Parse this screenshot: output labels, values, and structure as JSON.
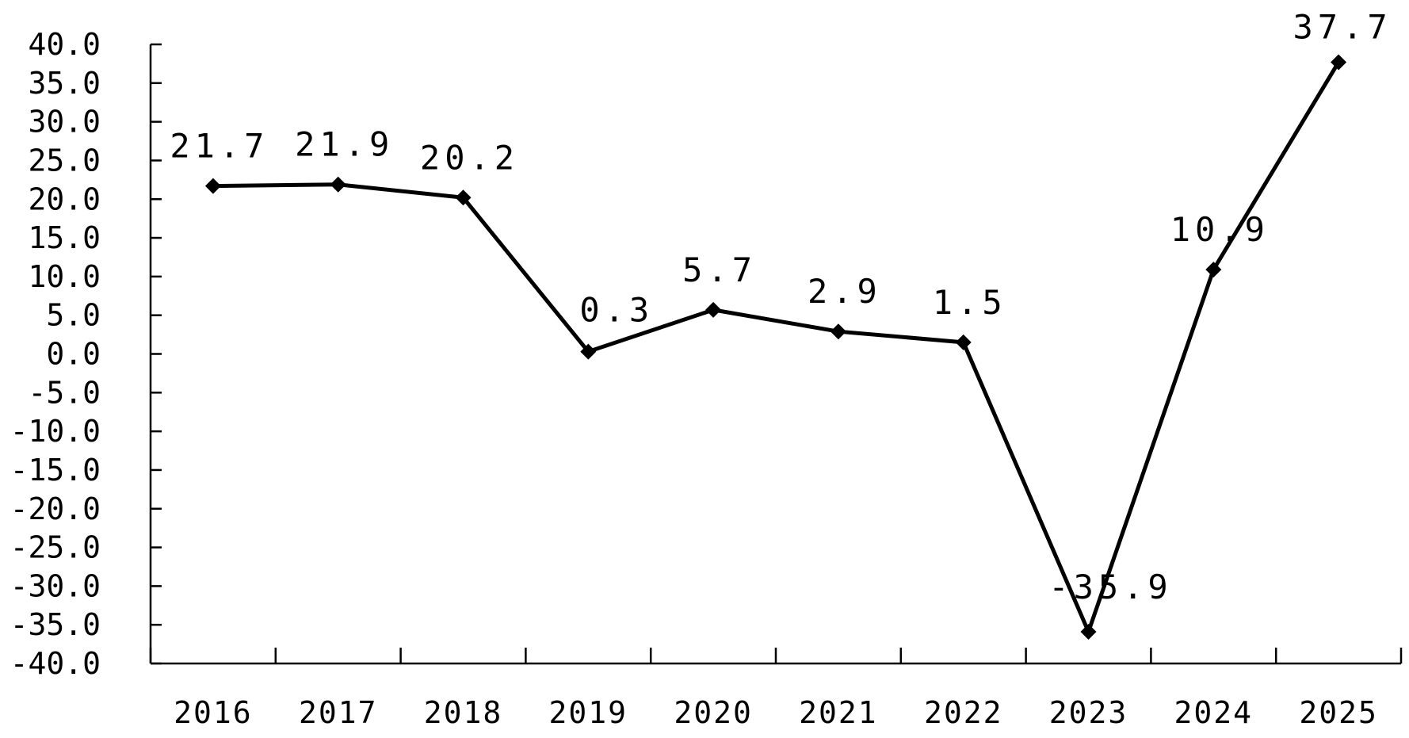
{
  "chart_data": {
    "type": "line",
    "title": "",
    "xlabel": "",
    "ylabel": "",
    "categories": [
      "2016",
      "2017",
      "2018",
      "2019",
      "2020",
      "2021",
      "2022",
      "2023",
      "2024",
      "2025"
    ],
    "series": [
      {
        "values": [
          21.7,
          21.9,
          20.2,
          0.3,
          5.7,
          2.9,
          1.5,
          -35.9,
          10.9,
          37.7
        ],
        "data_labels": [
          "21.7",
          "21.9",
          "20.2",
          "0.3",
          "5.7",
          "2.9",
          "1.5",
          "-35.9",
          "10.9",
          "37.7"
        ],
        "color": "#000000",
        "marker": "diamond"
      }
    ],
    "ylim": [
      -40,
      40
    ],
    "y_ticks": [
      "40.0",
      "35.0",
      "30.0",
      "25.0",
      "20.0",
      "15.0",
      "10.0",
      "5.0",
      "0.0",
      "-5.0",
      "-10.0",
      "-15.0",
      "-20.0",
      "-25.0",
      "-30.0",
      "-35.0",
      "-40.0"
    ],
    "grid": false,
    "legend": "none"
  }
}
